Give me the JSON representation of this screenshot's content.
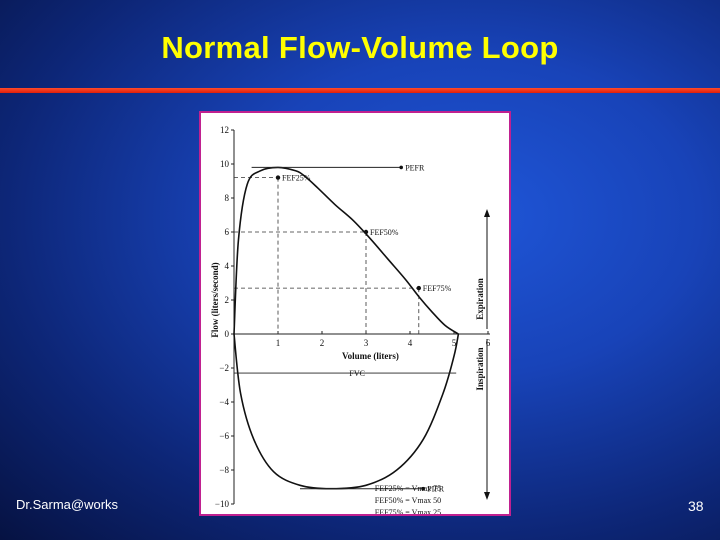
{
  "slide": {
    "title": "Normal Flow-Volume Loop",
    "author": "Dr.Sarma@works",
    "page_number": "38",
    "accent_color": "#ff3a1a",
    "title_color": "#ffff00",
    "background_color": "#1843b8"
  },
  "chart_data": {
    "type": "line",
    "xlabel": "Volume (liters)",
    "ylabel": "Flow (liters/second)",
    "xlim": [
      0,
      6
    ],
    "ylim": [
      -10,
      12
    ],
    "x_ticks": [
      "1",
      "2",
      "3",
      "4",
      "5",
      "6"
    ],
    "y_ticks": [
      "12",
      "10",
      "8",
      "6",
      "4",
      "2",
      "0",
      "-2",
      "-4",
      "-6",
      "-8",
      "-10"
    ],
    "series": [
      {
        "values": [
          [
            0,
            0
          ],
          [
            0.1,
            5.5
          ],
          [
            0.3,
            8.8
          ],
          [
            0.6,
            9.6
          ],
          [
            1.0,
            9.8
          ],
          [
            1.4,
            9.6
          ],
          [
            1.6,
            9.3
          ],
          [
            1.9,
            8.6
          ],
          [
            2.3,
            7.6
          ],
          [
            2.7,
            6.7
          ],
          [
            3.1,
            5.6
          ],
          [
            3.5,
            4.4
          ],
          [
            3.9,
            3.2
          ],
          [
            4.2,
            2.2
          ],
          [
            4.5,
            1.3
          ],
          [
            4.8,
            0.5
          ],
          [
            5.1,
            0
          ]
        ]
      },
      {
        "values": [
          [
            0,
            0
          ],
          [
            0.15,
            -3.5
          ],
          [
            0.45,
            -6.2
          ],
          [
            0.9,
            -8.1
          ],
          [
            1.5,
            -8.9
          ],
          [
            2.2,
            -9.1
          ],
          [
            3.0,
            -8.9
          ],
          [
            3.7,
            -8.0
          ],
          [
            4.3,
            -6.2
          ],
          [
            4.75,
            -3.5
          ],
          [
            5.0,
            -1.3
          ],
          [
            5.1,
            0
          ]
        ]
      }
    ],
    "markers": [
      {
        "label": "FEF25%",
        "x": 1.0,
        "y": 9.2
      },
      {
        "label": "FEF50%",
        "x": 3.0,
        "y": 6.0
      },
      {
        "label": "FEF75%",
        "x": 4.2,
        "y": 2.7
      }
    ],
    "annotations": {
      "pefr": "PEFR",
      "fvc": "FVC",
      "pifr": "PIFR",
      "expiration": "Expiration",
      "inspiration": "Inspiration"
    },
    "legend_formulas": [
      "FEF25% = Vmax 75",
      "FEF50% = Vmax 50",
      "FEF75% = Vmax 25"
    ]
  }
}
